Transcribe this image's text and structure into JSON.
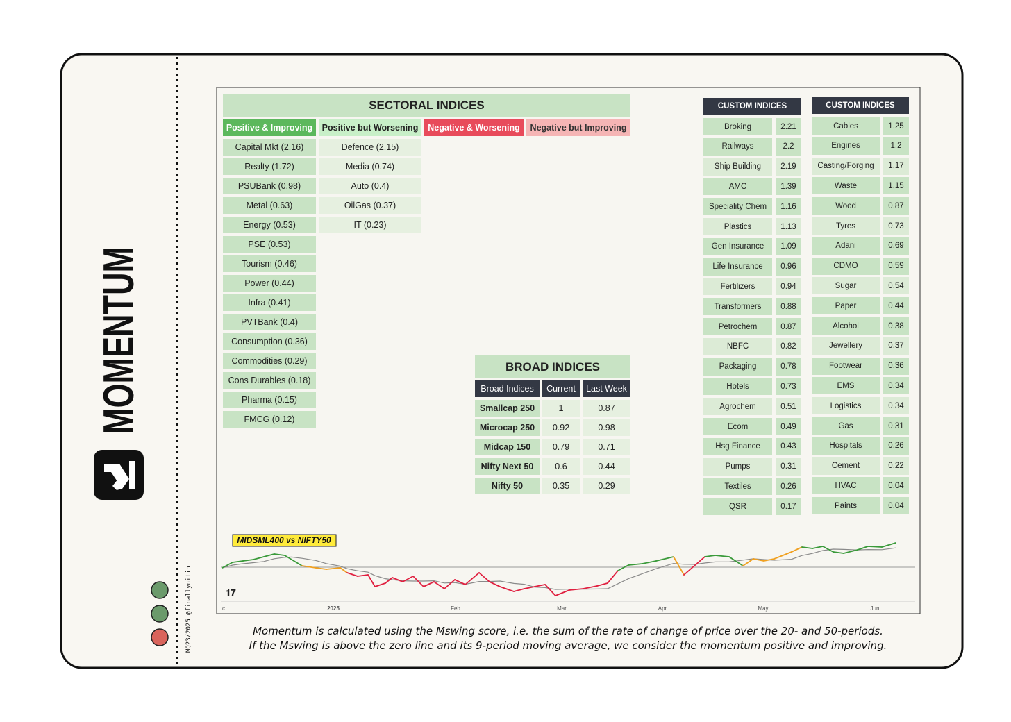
{
  "sidebar": {
    "title": "MOMENTUM",
    "handle": "MQ23/2025 @finallynitin"
  },
  "sectoral": {
    "title": "SECTORAL INDICES",
    "columns": [
      {
        "header": "Positive & Improving",
        "items": [
          "Capital Mkt (2.16)",
          "Realty (1.72)",
          "PSUBank (0.98)",
          "Metal (0.63)",
          "Energy (0.53)",
          "PSE (0.53)",
          "Tourism (0.46)",
          "Power (0.44)",
          "Infra (0.41)",
          "PVTBank (0.4)",
          "Consumption (0.36)",
          "Commodities (0.29)",
          "Cons Durables (0.18)",
          "Pharma (0.15)",
          "FMCG (0.12)"
        ]
      },
      {
        "header": "Positive but Worsening",
        "items": [
          "Defence (2.15)",
          "Media (0.74)",
          "Auto (0.4)",
          "OilGas (0.37)",
          "IT (0.23)"
        ]
      },
      {
        "header": "Negative & Worsening",
        "items": []
      },
      {
        "header": "Negative but Improving",
        "items": []
      }
    ]
  },
  "broad": {
    "title": "BROAD INDICES",
    "header": [
      "Broad Indices",
      "Current",
      "Last Week"
    ],
    "rows": [
      [
        "Smallcap 250",
        "1",
        "0.87"
      ],
      [
        "Microcap 250",
        "0.92",
        "0.98"
      ],
      [
        "Midcap 150",
        "0.79",
        "0.71"
      ],
      [
        "Nifty Next 50",
        "0.6",
        "0.44"
      ],
      [
        "Nifty 50",
        "0.35",
        "0.29"
      ]
    ]
  },
  "custom": [
    {
      "title": "CUSTOM INDICES",
      "rows": [
        [
          "Broking",
          "2.21"
        ],
        [
          "Railways",
          "2.2"
        ],
        [
          "Ship Building",
          "2.19"
        ],
        [
          "AMC",
          "1.39"
        ],
        [
          "Speciality Chem",
          "1.16"
        ],
        [
          "Plastics",
          "1.13"
        ],
        [
          "Gen Insurance",
          "1.09"
        ],
        [
          "Life Insurance",
          "0.96"
        ],
        [
          "Fertilizers",
          "0.94"
        ],
        [
          "Transformers",
          "0.88"
        ],
        [
          "Petrochem",
          "0.87"
        ],
        [
          "NBFC",
          "0.82"
        ],
        [
          "Packaging",
          "0.78"
        ],
        [
          "Hotels",
          "0.73"
        ],
        [
          "Agrochem",
          "0.51"
        ],
        [
          "Ecom",
          "0.49"
        ],
        [
          "Hsg Finance",
          "0.43"
        ],
        [
          "Pumps",
          "0.31"
        ],
        [
          "Textiles",
          "0.26"
        ],
        [
          "QSR",
          "0.17"
        ]
      ]
    },
    {
      "title": "CUSTOM INDICES",
      "rows": [
        [
          "Cables",
          "1.25"
        ],
        [
          "Engines",
          "1.2"
        ],
        [
          "Casting/Forging",
          "1.17"
        ],
        [
          "Waste",
          "1.15"
        ],
        [
          "Wood",
          "0.87"
        ],
        [
          "Tyres",
          "0.73"
        ],
        [
          "Adani",
          "0.69"
        ],
        [
          "CDMO",
          "0.59"
        ],
        [
          "Sugar",
          "0.54"
        ],
        [
          "Paper",
          "0.44"
        ],
        [
          "Alcohol",
          "0.38"
        ],
        [
          "Jewellery",
          "0.37"
        ],
        [
          "Footwear",
          "0.36"
        ],
        [
          "EMS",
          "0.34"
        ],
        [
          "Logistics",
          "0.34"
        ],
        [
          "Gas",
          "0.31"
        ],
        [
          "Hospitals",
          "0.26"
        ],
        [
          "Cement",
          "0.22"
        ],
        [
          "HVAC",
          "0.04"
        ],
        [
          "Paints",
          "0.04"
        ]
      ]
    }
  ],
  "chart": {
    "label": "MIDSML400 vs NIFTY50",
    "x_labels": [
      "c",
      "2025",
      "Feb",
      "Mar",
      "Apr",
      "May",
      "Jun"
    ]
  },
  "footer": {
    "lines": [
      "Momentum is calculated using the Mswing score, i.e. the sum of the rate of change of price over the 20- and 50-periods.",
      "If the Mswing is above the zero line and its 9-period moving average, we consider the momentum positive and improving."
    ]
  }
}
